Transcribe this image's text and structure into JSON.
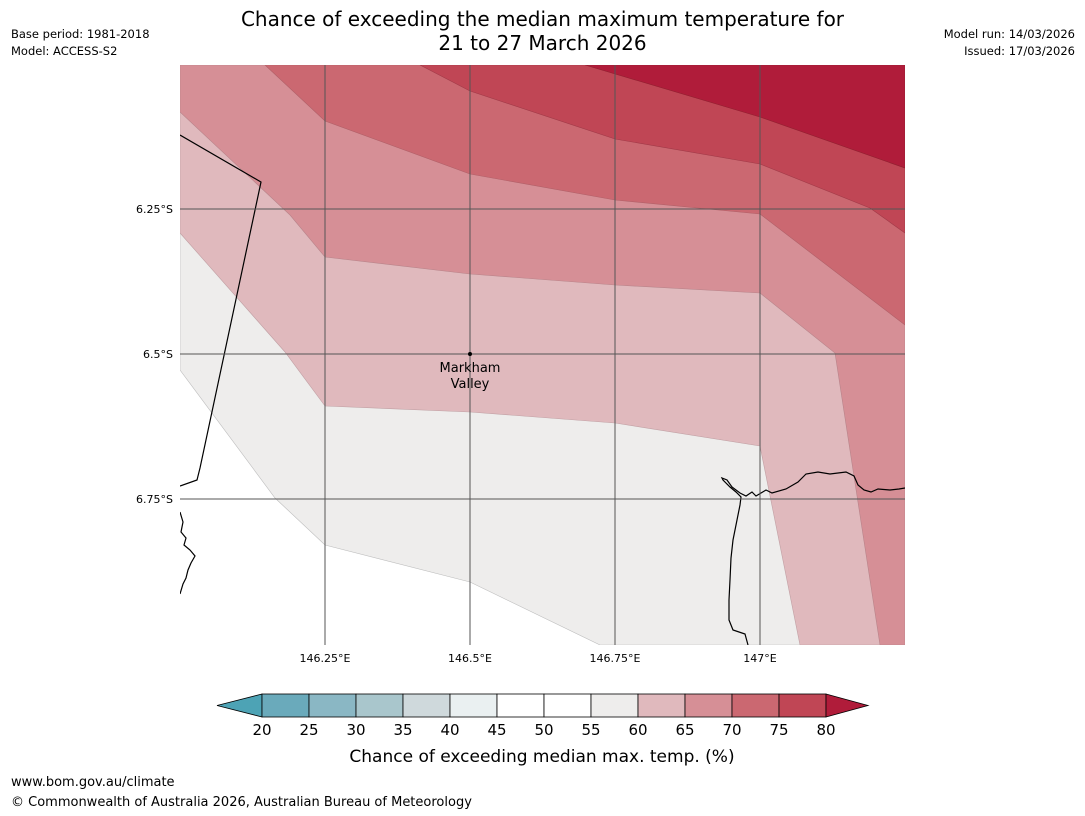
{
  "header": {
    "title_line1": "Chance of exceeding the median maximum temperature for",
    "title_line2": "21 to 27 March 2026",
    "base_period": "Base period: 1981-2018",
    "model": "Model: ACCESS-S2",
    "model_run": "Model run: 14/03/2026",
    "issued": "Issued: 17/03/2026"
  },
  "map": {
    "lon_labels": [
      "146.25°E",
      "146.5°E",
      "146.75°E",
      "147°E"
    ],
    "lat_labels": [
      "6.25°S",
      "6.5°S",
      "6.75°S"
    ],
    "place": {
      "name_line1": "Markham",
      "name_line2": "Valley"
    },
    "colors": {
      "c50_55": "#ffffff",
      "c55_60": "#eeedec",
      "c60_65": "#e0b9bd",
      "c65_70": "#d68f96",
      "c70_75": "#cb6871",
      "c75_80": "#c04655",
      "c80_plus": "#b01c3a",
      "grid": "#555555"
    }
  },
  "colorbar": {
    "ticks": [
      "20",
      "25",
      "30",
      "35",
      "40",
      "45",
      "50",
      "55",
      "60",
      "65",
      "70",
      "75",
      "80"
    ],
    "colors": [
      "#4da3b5",
      "#6aaabb",
      "#8ab7c4",
      "#a9c6cc",
      "#cfd9dc",
      "#eaf0f1",
      "#ffffff",
      "#ffffff",
      "#eeedec",
      "#e0b9bd",
      "#d68f96",
      "#cb6871",
      "#c04655",
      "#b01c3a"
    ],
    "title": "Chance of exceeding median max. temp. (%)"
  },
  "footer": {
    "url": "www.bom.gov.au/climate",
    "copyright": "© Commonwealth of Australia 2026, Australian Bureau of Meteorology"
  }
}
